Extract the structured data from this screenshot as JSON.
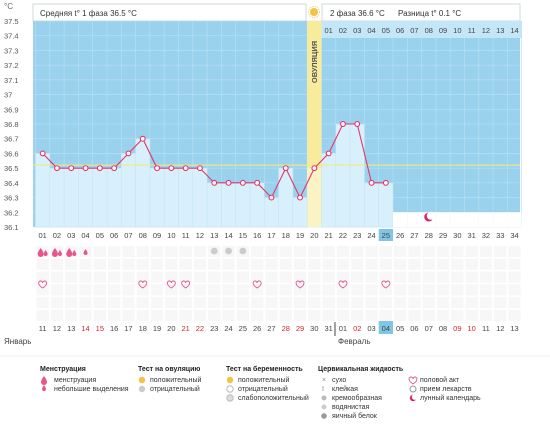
{
  "header": {
    "unit": "°C",
    "phase1": "Средняя t° 1 фаза 36.5 °C",
    "phase2": "2 фаза 36.6 °C",
    "diff": "Разница t° 0.1 °C"
  },
  "chart_data": {
    "type": "bar",
    "ylim": [
      36.1,
      37.5
    ],
    "yticks": [
      "36.1",
      "36.2",
      "36.3",
      "36.4",
      "36.5",
      "36.6",
      "36.7",
      "36.8",
      "36.9",
      "37",
      "37.1",
      "37.2",
      "37.3",
      "37.4",
      "37.5"
    ],
    "coverline": 36.52,
    "ovulation_label": "ОВУЛЯЦИЯ",
    "ovulation_index": 19,
    "cycle_days": [
      "01",
      "02",
      "03",
      "04",
      "05",
      "06",
      "07",
      "08",
      "09",
      "10",
      "11",
      "12",
      "13",
      "14",
      "15",
      "16",
      "17",
      "18",
      "19",
      "20",
      "21",
      "22",
      "23",
      "24",
      "25",
      "26",
      "27",
      "28",
      "29",
      "30",
      "31",
      "32",
      "33",
      "34"
    ],
    "temps": [
      36.6,
      36.5,
      36.5,
      36.5,
      36.5,
      36.5,
      36.6,
      36.7,
      36.5,
      36.5,
      36.5,
      36.5,
      36.4,
      36.4,
      36.4,
      36.4,
      36.3,
      36.5,
      36.3,
      36.5,
      36.6,
      36.8,
      36.8,
      36.4,
      36.4,
      null,
      null,
      null,
      null,
      null,
      null,
      null,
      null,
      null
    ],
    "phase2_days": [
      "01",
      "02",
      "03",
      "04",
      "05",
      "06",
      "07",
      "08",
      "09",
      "10",
      "11",
      "12",
      "13",
      "14"
    ],
    "calendar_dates": [
      "11",
      "12",
      "13",
      "14",
      "15",
      "16",
      "17",
      "18",
      "19",
      "20",
      "21",
      "22",
      "23",
      "24",
      "25",
      "26",
      "27",
      "28",
      "29",
      "30",
      "31",
      "01",
      "02",
      "03",
      "04",
      "05",
      "06",
      "07",
      "08",
      "09",
      "10",
      "11",
      "12",
      "13"
    ],
    "red_dates_index": [
      3,
      4,
      10,
      11,
      17,
      18,
      22,
      29,
      30
    ],
    "month1": "Январь",
    "month2": "Февраль",
    "today_index": 24,
    "menstruation": [
      "big",
      "big",
      "big",
      "small",
      null,
      null,
      null,
      null,
      null,
      null,
      null,
      null,
      null,
      null,
      null,
      null,
      null,
      null,
      null,
      null,
      null,
      null,
      null,
      null,
      null,
      null,
      null,
      null,
      null,
      null,
      null,
      null,
      null,
      null
    ],
    "ovulation_tests_negative": [
      12,
      13,
      14
    ],
    "hearts": [
      0,
      7,
      9,
      10,
      15,
      18,
      21,
      24
    ],
    "moon_index": 27
  },
  "legend": {
    "menstruation_title": "Менструация",
    "menstruation_items": [
      "менструация",
      "небольшие выделения"
    ],
    "ovtest_title": "Тест на овуляцию",
    "ovtest_items": [
      "положительный",
      "отрицательный"
    ],
    "pregtest_title": "Тест на беременность",
    "pregtest_items": [
      "положительный",
      "отрицательный",
      "слабоположительный"
    ],
    "fluid_title": "Цервикальная жидкость",
    "fluid_items": [
      "сухо",
      "клейкая",
      "кремообразная",
      "водянистая",
      "яичный белок"
    ],
    "other_items": [
      "половой акт",
      "прием лекарств",
      "лунный календарь"
    ]
  }
}
